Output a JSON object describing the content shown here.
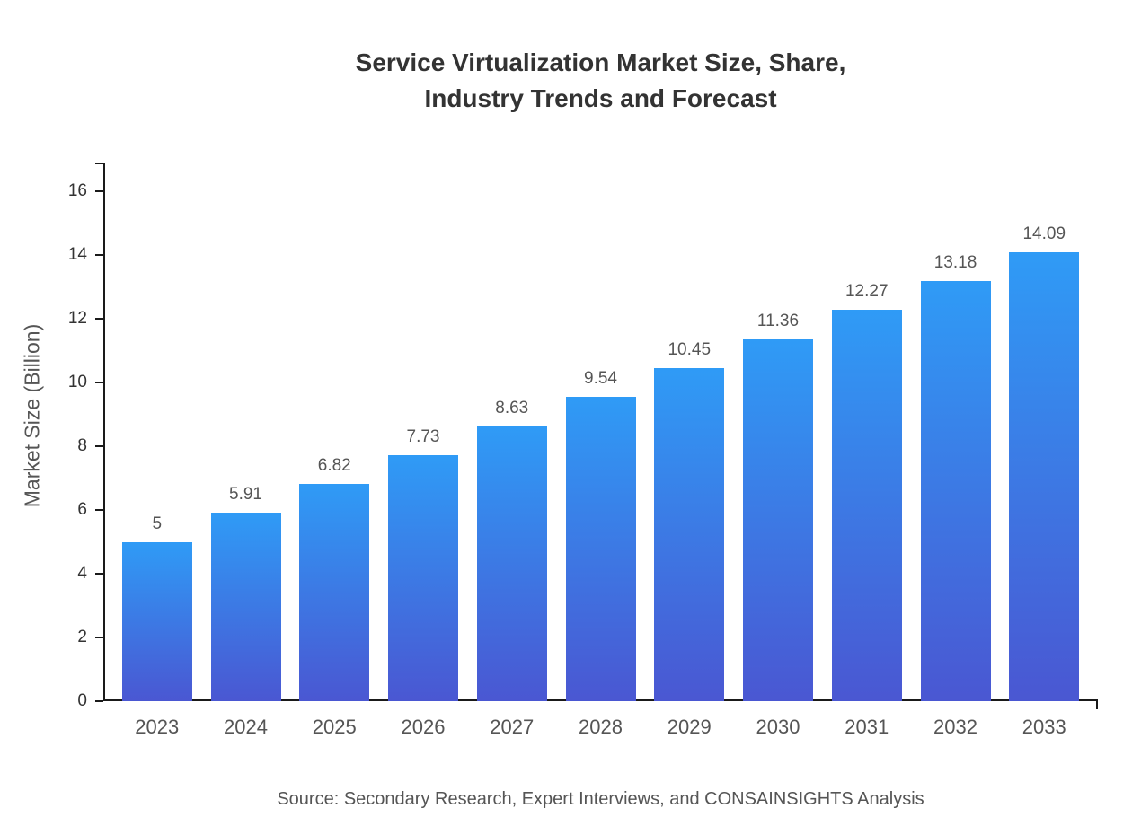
{
  "title": {
    "line1": "Service Virtualization Market Size, Share,",
    "line2": "Industry Trends and Forecast"
  },
  "source": "Source: Secondary Research, Expert Interviews, and CONSAINSIGHTS Analysis",
  "chart_data": {
    "type": "bar",
    "title": "Service Virtualization Market Size, Share, Industry Trends and Forecast",
    "categories": [
      "2023",
      "2024",
      "2025",
      "2026",
      "2027",
      "2028",
      "2029",
      "2030",
      "2031",
      "2032",
      "2033"
    ],
    "values": [
      5,
      5.91,
      6.82,
      7.73,
      8.63,
      9.54,
      10.45,
      11.36,
      12.27,
      13.18,
      14.09
    ],
    "value_labels": [
      "5",
      "5.91",
      "6.82",
      "7.73",
      "8.63",
      "9.54",
      "10.45",
      "11.36",
      "12.27",
      "13.18",
      "14.09"
    ],
    "xlabel": "",
    "ylabel": "Market Size (Billion)",
    "ylim": [
      0,
      16
    ],
    "ytick_step": 2,
    "ytick_labels": [
      "0",
      "2",
      "4",
      "6",
      "8",
      "10",
      "12",
      "14",
      "16"
    ],
    "grid": false,
    "legend": false,
    "bar_gradient_top": "#2f9bf6",
    "bar_gradient_bottom": "#4a57d2",
    "axis_color": "#1a1a1a",
    "label_color": "#555555"
  }
}
